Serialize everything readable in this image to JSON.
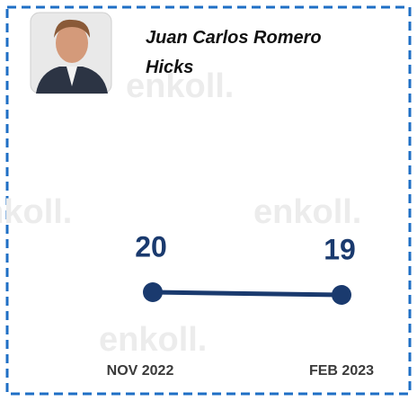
{
  "name": "Juan Carlos Romero Hicks",
  "watermark": "enkoll.",
  "chart_data": {
    "type": "line",
    "categories": [
      "NOV 2022",
      "FEB 2023"
    ],
    "values": [
      20,
      19
    ],
    "color": "#1a3a6e",
    "ylim": [
      0,
      100
    ]
  }
}
